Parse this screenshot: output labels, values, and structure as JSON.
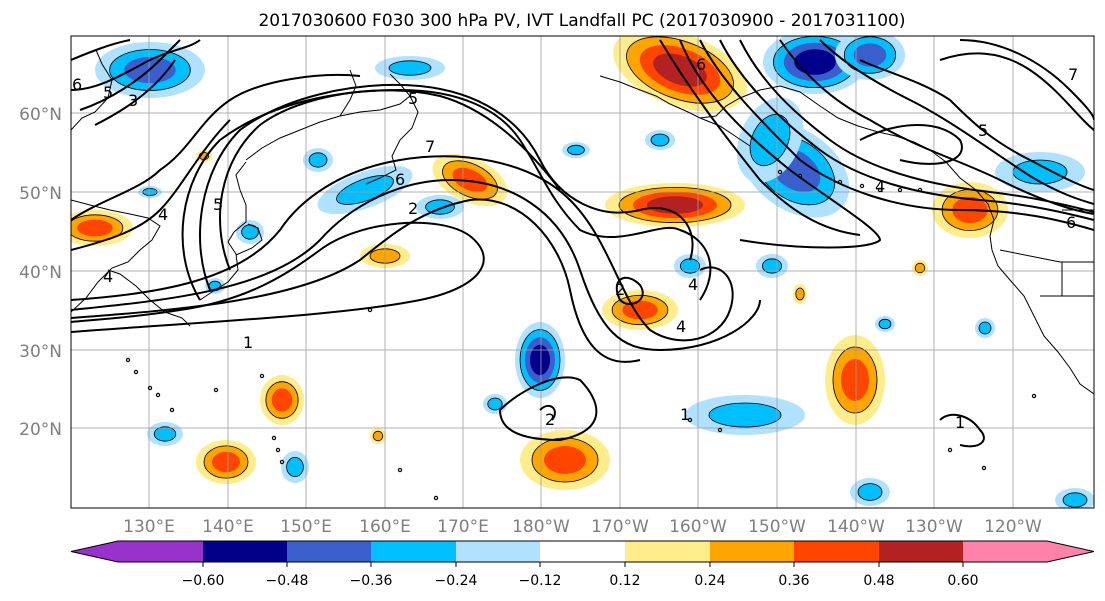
{
  "title": "2017030600 F030 300 hPa PV, IVT Landfall PC (2017030900 - 2017031100)",
  "lon_labels": [
    "130°E",
    "140°E",
    "150°E",
    "160°E",
    "170°E",
    "180°W",
    "170°W",
    "160°W",
    "150°W",
    "140°W",
    "130°W",
    "120°W"
  ],
  "lat_labels": [
    "60°N",
    "50°N",
    "40°N",
    "30°N",
    "20°N"
  ],
  "colorbar": {
    "tick_labels": [
      "−0.60",
      "−0.48",
      "−0.36",
      "−0.24",
      "−0.12",
      "0.12",
      "0.24",
      "0.36",
      "0.48",
      "0.60"
    ],
    "colors": [
      "#9932cc",
      "#00008b",
      "#3a5fcd",
      "#00bfff",
      "#b0e2ff",
      "#ffffff",
      "#ffec8b",
      "#ffa500",
      "#ff4500",
      "#b22222",
      "#ff82ab"
    ]
  },
  "contour_labels": [
    "6",
    "5",
    "3",
    "5",
    "4",
    "4",
    "7",
    "6",
    "5",
    "2",
    "1",
    "2",
    "1",
    "2",
    "4",
    "4",
    "5",
    "6",
    "7",
    "4",
    "6",
    "1"
  ],
  "colors": {
    "pos1": "#ffec8b",
    "pos2": "#ffa500",
    "pos3": "#ff4500",
    "pos4": "#b22222",
    "neg1": "#b0e2ff",
    "neg2": "#00bfff",
    "neg3": "#3a5fcd",
    "neg4": "#00008b"
  }
}
